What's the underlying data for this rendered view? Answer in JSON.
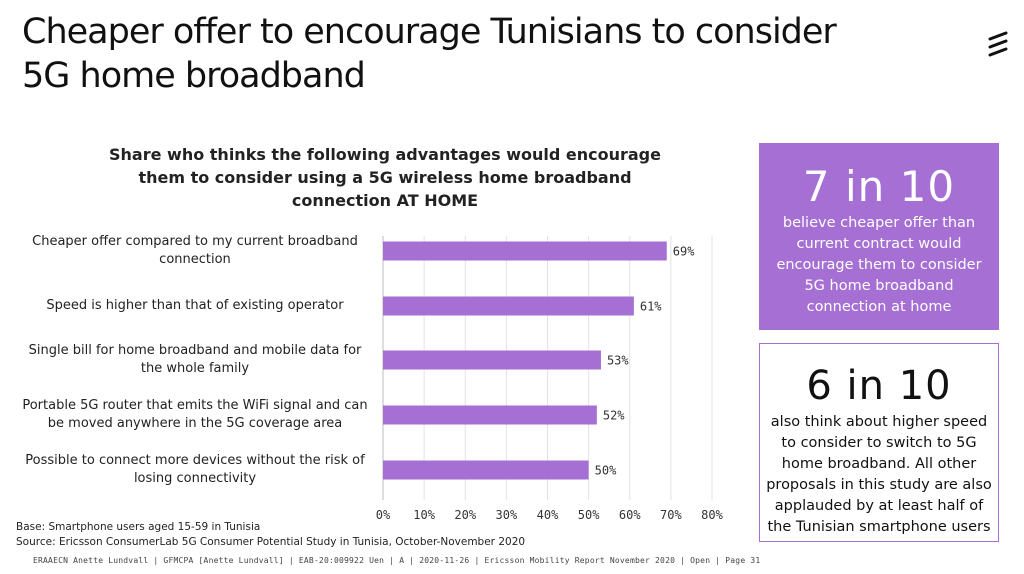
{
  "page": {
    "title_line1": "Cheaper offer to encourage Tunisians to consider",
    "title_line2": "5G home broadband"
  },
  "chart_data": {
    "type": "bar",
    "orientation": "horizontal",
    "title": "Share who thinks the following advantages would encourage them to consider using a 5G wireless home broadband connection AT HOME",
    "categories": [
      "Cheaper offer compared to my current broadband connection",
      "Speed is higher than that of existing operator",
      "Single bill for home broadband and mobile data for the whole family",
      "Portable 5G router that emits the WiFi signal and can be moved anywhere in the 5G coverage area",
      "Possible to connect more devices without the risk of losing connectivity"
    ],
    "values": [
      69,
      61,
      53,
      52,
      50
    ],
    "value_labels": [
      "69%",
      "61%",
      "53%",
      "52%",
      "50%"
    ],
    "xlim": [
      0,
      80
    ],
    "ticks": [
      "0%",
      "10%",
      "20%",
      "30%",
      "40%",
      "50%",
      "60%",
      "70%",
      "80%"
    ],
    "bar_color": "#a66fd4",
    "grid": true
  },
  "notes": {
    "base": "Base: Smartphone users aged 15-59 in Tunisia",
    "source": "Source: Ericsson ConsumerLab 5G Consumer Potential Study in Tunisia, October-November 2020"
  },
  "footer": "ERAAECN Anette Lundvall | GFMCPA [Anette Lundvall] | EAB-20:009922 Uen | A | 2020-11-26 | Ericsson Mobility Report November 2020 | Open | Page 31",
  "callouts": [
    {
      "big": "7 in 10",
      "text": "believe cheaper offer than current contract would encourage them to consider 5G home broadband connection at home"
    },
    {
      "big": "6 in 10",
      "text": "also think about higher speed to consider to switch to 5G home broadband. All other proposals in this study are also applauded by at least half of the Tunisian smartphone users"
    }
  ],
  "colors": {
    "accent": "#a66fd4",
    "text": "#1a1a1a"
  },
  "logo_icon": "ericsson-logo-icon"
}
